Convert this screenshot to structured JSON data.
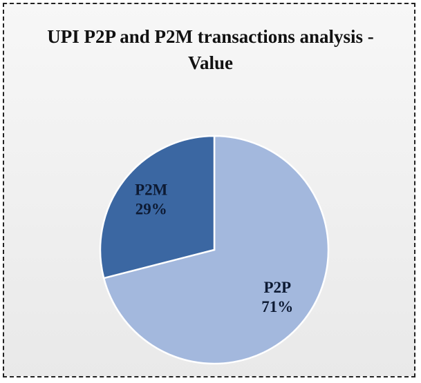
{
  "chart_data": {
    "type": "pie",
    "title": "UPI P2P and P2M transactions analysis - Value",
    "categories": [
      "P2P",
      "P2M"
    ],
    "values": [
      71,
      29
    ],
    "value_labels": [
      "71%",
      "29%"
    ],
    "colors": [
      "#a3b8dd",
      "#3b67a2"
    ]
  }
}
